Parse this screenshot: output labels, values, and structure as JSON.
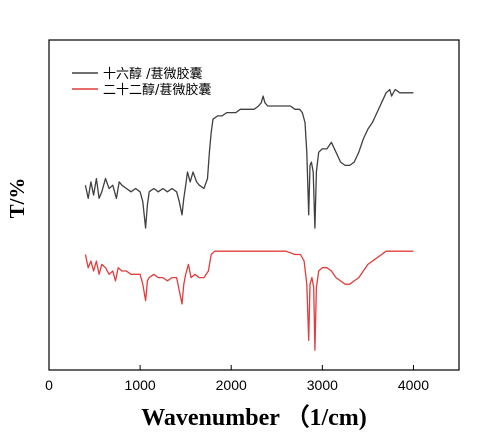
{
  "chart_data": {
    "type": "line",
    "xlabel": "Wavenumber （1/cm)",
    "ylabel": "T/%",
    "xlim": [
      0,
      4500
    ],
    "ylim": [
      0,
      100
    ],
    "x_ticks": [
      0,
      1000,
      2000,
      3000,
      4000
    ],
    "y_ticks": [],
    "grid": false,
    "legend_position": "top-left",
    "series": [
      {
        "name": "十六醇 /葚微胶囊",
        "color": "#404040",
        "points": [
          [
            400,
            56
          ],
          [
            430,
            52
          ],
          [
            460,
            57
          ],
          [
            490,
            53
          ],
          [
            520,
            58
          ],
          [
            550,
            52
          ],
          [
            580,
            54
          ],
          [
            620,
            58
          ],
          [
            660,
            55
          ],
          [
            700,
            56
          ],
          [
            740,
            52
          ],
          [
            770,
            57
          ],
          [
            800,
            56
          ],
          [
            850,
            55
          ],
          [
            900,
            54
          ],
          [
            950,
            55
          ],
          [
            1000,
            54
          ],
          [
            1030,
            51
          ],
          [
            1060,
            43
          ],
          [
            1080,
            50
          ],
          [
            1100,
            54
          ],
          [
            1150,
            55
          ],
          [
            1200,
            54
          ],
          [
            1250,
            55
          ],
          [
            1300,
            54
          ],
          [
            1350,
            55
          ],
          [
            1400,
            54
          ],
          [
            1430,
            51
          ],
          [
            1460,
            47
          ],
          [
            1480,
            52
          ],
          [
            1500,
            56
          ],
          [
            1520,
            60
          ],
          [
            1550,
            57
          ],
          [
            1580,
            60
          ],
          [
            1620,
            57
          ],
          [
            1650,
            56
          ],
          [
            1700,
            55
          ],
          [
            1740,
            58
          ],
          [
            1760,
            66
          ],
          [
            1780,
            72
          ],
          [
            1800,
            76
          ],
          [
            1850,
            77
          ],
          [
            1900,
            77
          ],
          [
            1950,
            78
          ],
          [
            2000,
            78
          ],
          [
            2050,
            78
          ],
          [
            2100,
            79
          ],
          [
            2150,
            79
          ],
          [
            2200,
            79
          ],
          [
            2250,
            79
          ],
          [
            2300,
            80
          ],
          [
            2330,
            81
          ],
          [
            2350,
            83
          ],
          [
            2370,
            81
          ],
          [
            2400,
            80
          ],
          [
            2450,
            80
          ],
          [
            2500,
            80
          ],
          [
            2550,
            80
          ],
          [
            2600,
            80
          ],
          [
            2650,
            80
          ],
          [
            2700,
            79
          ],
          [
            2750,
            79
          ],
          [
            2780,
            78
          ],
          [
            2810,
            75
          ],
          [
            2830,
            66
          ],
          [
            2850,
            47
          ],
          [
            2865,
            62
          ],
          [
            2880,
            63
          ],
          [
            2900,
            60
          ],
          [
            2918,
            43
          ],
          [
            2935,
            60
          ],
          [
            2960,
            66
          ],
          [
            3000,
            67
          ],
          [
            3050,
            67
          ],
          [
            3100,
            69
          ],
          [
            3150,
            66
          ],
          [
            3200,
            63
          ],
          [
            3250,
            62
          ],
          [
            3300,
            62
          ],
          [
            3350,
            63
          ],
          [
            3400,
            66
          ],
          [
            3450,
            70
          ],
          [
            3500,
            73
          ],
          [
            3550,
            75
          ],
          [
            3600,
            78
          ],
          [
            3650,
            81
          ],
          [
            3700,
            84
          ],
          [
            3740,
            85
          ],
          [
            3760,
            83
          ],
          [
            3800,
            85
          ],
          [
            3850,
            84
          ],
          [
            3900,
            84
          ],
          [
            3950,
            84
          ],
          [
            4000,
            84
          ]
        ]
      },
      {
        "name": "二十二醇/葚微胶囊",
        "color": "#e23c3c",
        "points": [
          [
            400,
            35
          ],
          [
            430,
            31
          ],
          [
            460,
            33
          ],
          [
            490,
            30
          ],
          [
            520,
            33
          ],
          [
            550,
            29
          ],
          [
            580,
            32
          ],
          [
            620,
            31
          ],
          [
            660,
            29
          ],
          [
            700,
            30
          ],
          [
            730,
            27
          ],
          [
            760,
            31
          ],
          [
            800,
            30
          ],
          [
            850,
            30
          ],
          [
            900,
            29
          ],
          [
            950,
            29
          ],
          [
            1000,
            29
          ],
          [
            1030,
            26
          ],
          [
            1060,
            21
          ],
          [
            1080,
            27
          ],
          [
            1100,
            28
          ],
          [
            1150,
            29
          ],
          [
            1200,
            28
          ],
          [
            1250,
            28
          ],
          [
            1300,
            27
          ],
          [
            1350,
            28
          ],
          [
            1400,
            28
          ],
          [
            1430,
            24
          ],
          [
            1460,
            20
          ],
          [
            1480,
            26
          ],
          [
            1500,
            29
          ],
          [
            1530,
            32
          ],
          [
            1560,
            28
          ],
          [
            1600,
            29
          ],
          [
            1650,
            28
          ],
          [
            1700,
            28
          ],
          [
            1750,
            30
          ],
          [
            1780,
            35
          ],
          [
            1820,
            36
          ],
          [
            1900,
            36
          ],
          [
            2000,
            36
          ],
          [
            2100,
            36
          ],
          [
            2200,
            36
          ],
          [
            2300,
            36
          ],
          [
            2400,
            36
          ],
          [
            2500,
            36
          ],
          [
            2600,
            36
          ],
          [
            2700,
            35
          ],
          [
            2760,
            35
          ],
          [
            2800,
            33
          ],
          [
            2830,
            26
          ],
          [
            2850,
            9
          ],
          [
            2865,
            26
          ],
          [
            2885,
            28
          ],
          [
            2905,
            25
          ],
          [
            2918,
            6
          ],
          [
            2935,
            25
          ],
          [
            2960,
            30
          ],
          [
            3000,
            31
          ],
          [
            3050,
            31
          ],
          [
            3100,
            30
          ],
          [
            3150,
            28
          ],
          [
            3200,
            27
          ],
          [
            3250,
            26
          ],
          [
            3300,
            26
          ],
          [
            3350,
            27
          ],
          [
            3400,
            28
          ],
          [
            3450,
            30
          ],
          [
            3500,
            32
          ],
          [
            3550,
            33
          ],
          [
            3600,
            34
          ],
          [
            3650,
            35
          ],
          [
            3700,
            36
          ],
          [
            3750,
            36
          ],
          [
            3800,
            36
          ],
          [
            3900,
            36
          ],
          [
            4000,
            36
          ]
        ]
      }
    ]
  }
}
